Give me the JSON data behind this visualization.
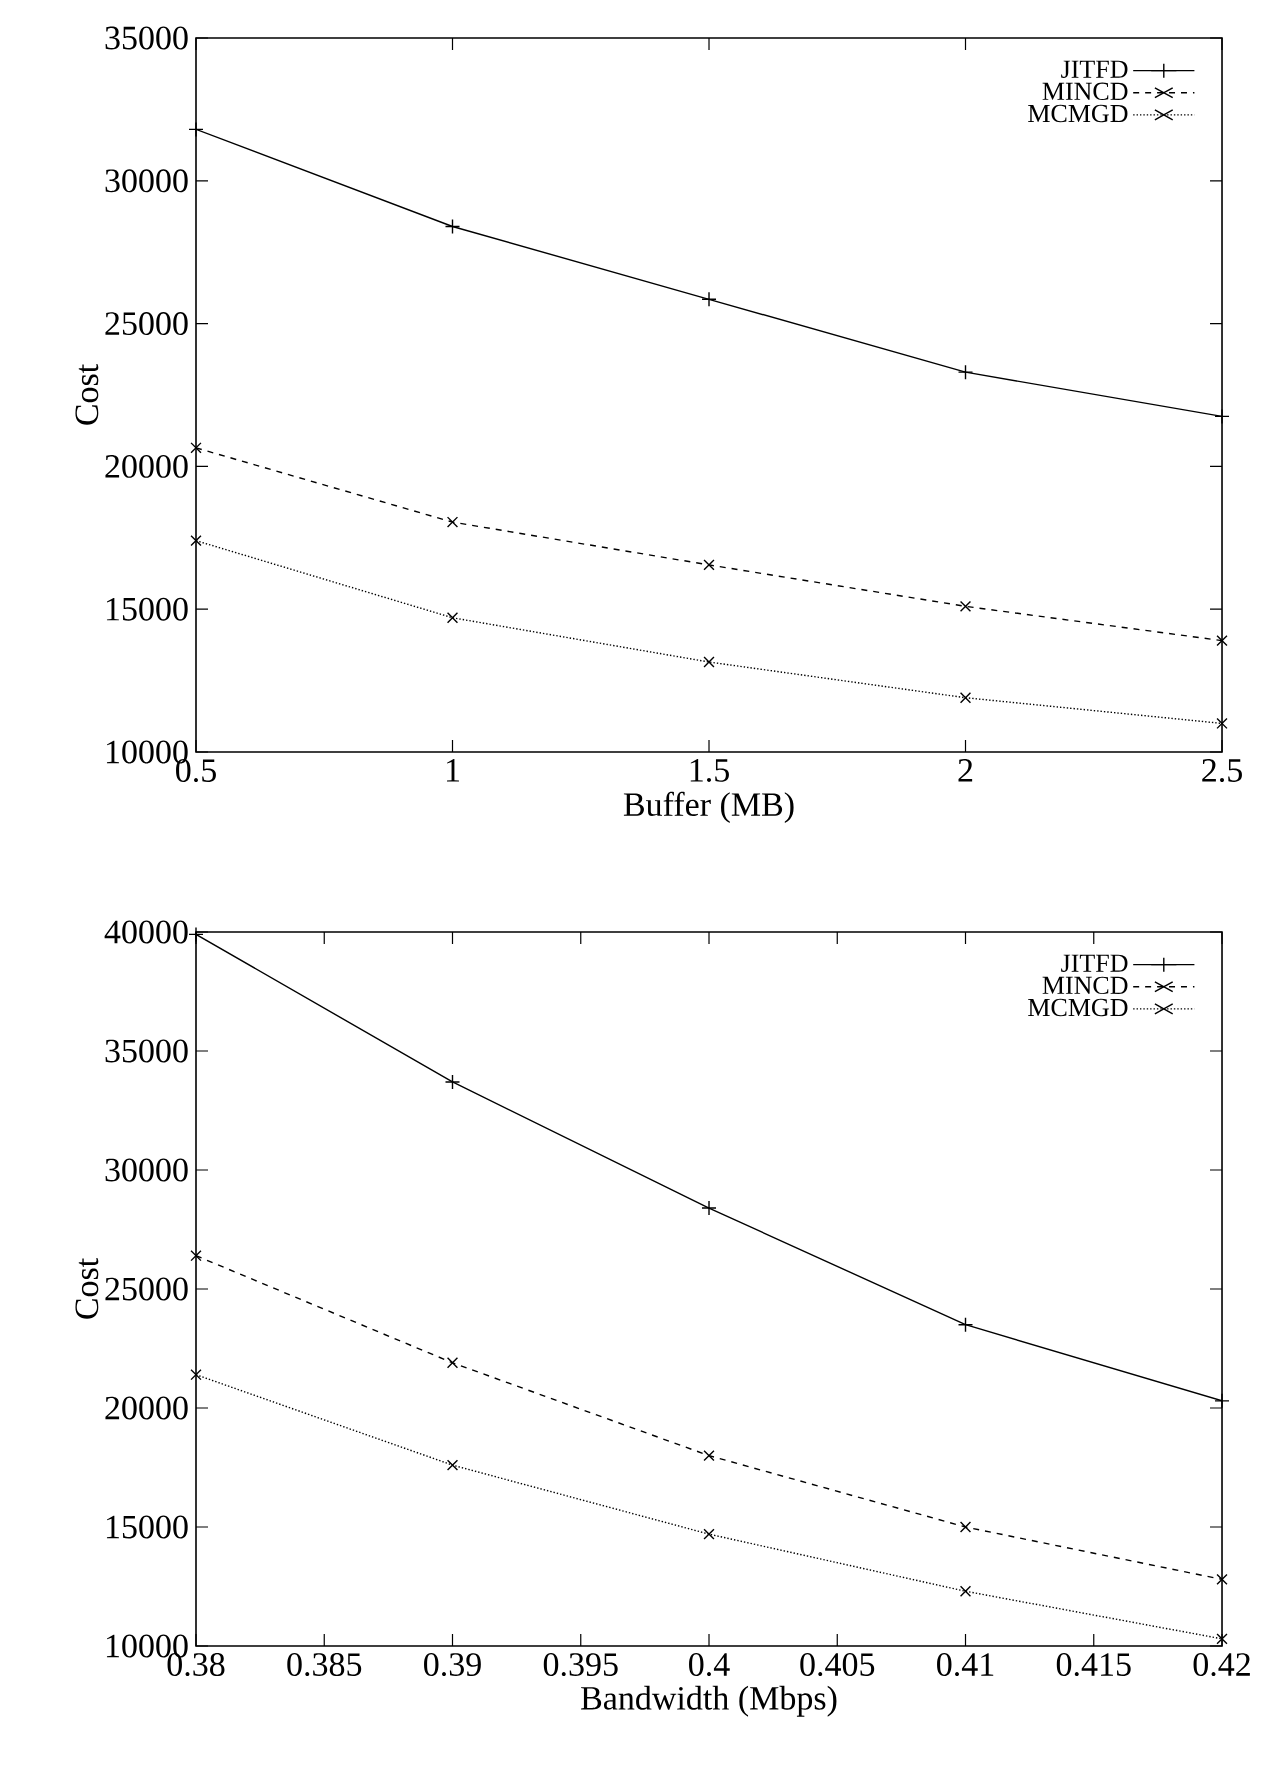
{
  "chart_data": [
    {
      "type": "line",
      "xlabel": "Buffer (MB)",
      "ylabel": "Cost",
      "x": [
        0.5,
        1,
        1.5,
        2,
        2.5
      ],
      "series": [
        {
          "name": "JITFD",
          "color": "#000000",
          "marker": "plus",
          "line_style": "solid",
          "values": [
            31800,
            28400,
            25850,
            23300,
            21750
          ]
        },
        {
          "name": "MINCD",
          "color": "#000000",
          "marker": "cross",
          "line_style": "dashed",
          "values": [
            20650,
            18050,
            16550,
            15100,
            13900
          ]
        },
        {
          "name": "MCMGD",
          "color": "#000000",
          "marker": "cross",
          "line_style": "dotted",
          "values": [
            17400,
            14700,
            13150,
            11900,
            11000
          ]
        }
      ],
      "xlim": [
        0.5,
        2.5
      ],
      "ylim": [
        10000,
        35000
      ],
      "xticks": [
        0.5,
        1,
        1.5,
        2,
        2.5
      ],
      "yticks": [
        10000,
        15000,
        20000,
        25000,
        30000,
        35000
      ],
      "grid": false,
      "legend": "top right"
    },
    {
      "type": "line",
      "xlabel": "Bandwidth (Mbps)",
      "ylabel": "Cost",
      "x": [
        0.38,
        0.39,
        0.4,
        0.41,
        0.42
      ],
      "series": [
        {
          "name": "JITFD",
          "color": "#000000",
          "marker": "plus",
          "line_style": "solid",
          "values": [
            39900,
            33700,
            28400,
            23500,
            20300
          ]
        },
        {
          "name": "MINCD",
          "color": "#000000",
          "marker": "cross",
          "line_style": "dashed",
          "values": [
            26400,
            21900,
            18000,
            15000,
            12800
          ]
        },
        {
          "name": "MCMGD",
          "color": "#000000",
          "marker": "cross",
          "line_style": "dotted",
          "values": [
            21400,
            17600,
            14700,
            12300,
            10300
          ]
        }
      ],
      "xlim": [
        0.38,
        0.42
      ],
      "ylim": [
        10000,
        40000
      ],
      "xticks": [
        0.38,
        0.385,
        0.39,
        0.395,
        0.4,
        0.405,
        0.41,
        0.415,
        0.42
      ],
      "yticks": [
        10000,
        15000,
        20000,
        25000,
        30000,
        35000,
        40000
      ],
      "grid": false,
      "legend": "top right"
    }
  ]
}
